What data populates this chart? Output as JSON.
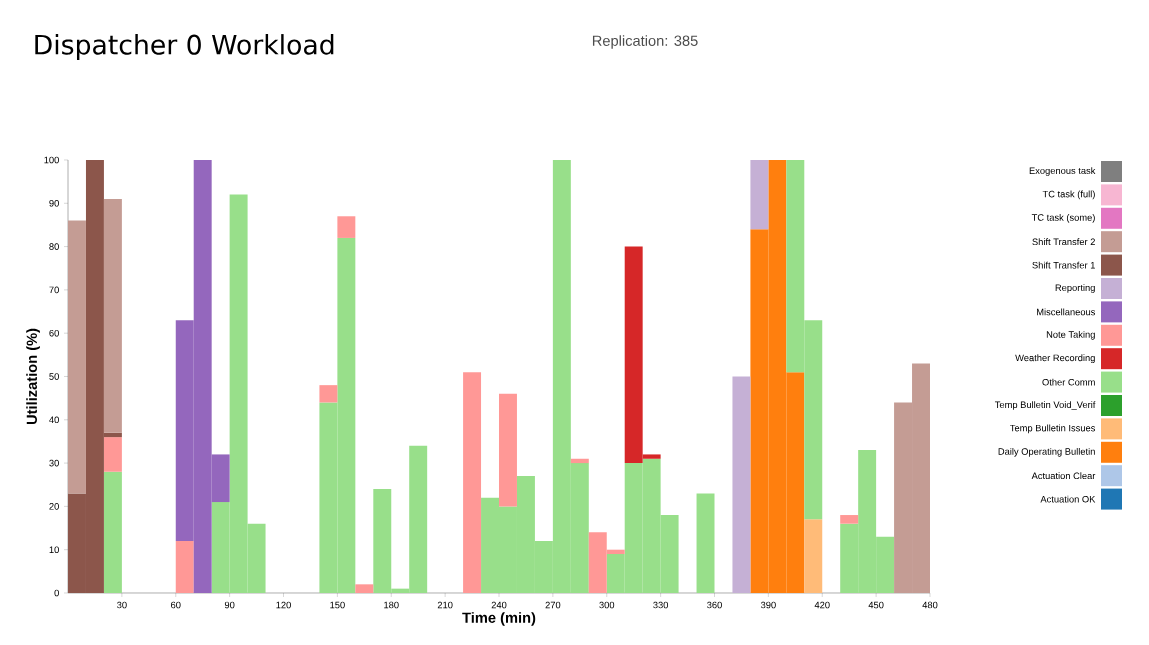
{
  "chart_data": {
    "type": "bar",
    "title": "Dispatcher 0 Workload",
    "annotations": [
      "Replication: 385"
    ],
    "xlabel": "Time (min)",
    "ylabel": "Utilization (%)",
    "x": [
      5,
      15,
      25,
      35,
      45,
      55,
      65,
      75,
      85,
      95,
      105,
      115,
      125,
      135,
      145,
      155,
      165,
      175,
      185,
      195,
      205,
      215,
      225,
      235,
      245,
      255,
      265,
      275,
      285,
      295,
      305,
      315,
      325,
      335,
      345,
      355,
      365,
      375,
      385,
      395,
      405,
      415,
      425,
      435,
      445,
      455,
      465,
      475
    ],
    "stacked": true,
    "legend": "right",
    "xlim": [
      0,
      480
    ],
    "ylim": [
      0,
      100
    ],
    "xticks": [
      30,
      60,
      90,
      120,
      150,
      180,
      210,
      240,
      270,
      300,
      330,
      360,
      390,
      420,
      450,
      480
    ],
    "yticks": [
      0,
      10,
      20,
      30,
      40,
      50,
      60,
      70,
      80,
      90,
      100
    ],
    "series": [
      {
        "name": "Actuation OK",
        "color": "#1f77b4",
        "values": [
          0,
          0,
          0,
          0,
          0,
          0,
          0,
          0,
          0,
          0,
          0,
          0,
          0,
          0,
          0,
          0,
          0,
          0,
          0,
          0,
          0,
          0,
          0,
          0,
          0,
          0,
          0,
          0,
          0,
          0,
          0,
          0,
          0,
          0,
          0,
          0,
          0,
          0,
          0,
          0,
          0,
          0,
          0,
          0,
          0,
          0,
          0,
          0
        ]
      },
      {
        "name": "Actuation Clear",
        "color": "#aec7e8",
        "values": [
          0,
          0,
          0,
          0,
          0,
          0,
          0,
          0,
          0,
          0,
          0,
          0,
          0,
          0,
          0,
          0,
          0,
          0,
          0,
          0,
          0,
          0,
          0,
          0,
          0,
          0,
          0,
          0,
          0,
          0,
          0,
          0,
          0,
          0,
          0,
          0,
          0,
          0,
          0,
          0,
          0,
          0,
          0,
          0,
          0,
          0,
          0,
          0
        ]
      },
      {
        "name": "Daily Operating Bulletin",
        "color": "#ff7f0e",
        "values": [
          0,
          0,
          0,
          0,
          0,
          0,
          0,
          0,
          0,
          0,
          0,
          0,
          0,
          0,
          0,
          0,
          0,
          0,
          0,
          0,
          0,
          0,
          0,
          0,
          0,
          0,
          0,
          0,
          0,
          0,
          0,
          0,
          0,
          0,
          0,
          0,
          0,
          0,
          84,
          100,
          51,
          0,
          0,
          0,
          0,
          0,
          0,
          0
        ]
      },
      {
        "name": "Temp Bulletin Issues",
        "color": "#ffbb78",
        "values": [
          0,
          0,
          0,
          0,
          0,
          0,
          0,
          0,
          0,
          0,
          0,
          0,
          0,
          0,
          0,
          0,
          0,
          0,
          0,
          0,
          0,
          0,
          0,
          0,
          0,
          0,
          0,
          0,
          0,
          0,
          0,
          0,
          0,
          0,
          0,
          0,
          0,
          0,
          0,
          0,
          0,
          17,
          0,
          0,
          0,
          0,
          0,
          0
        ]
      },
      {
        "name": "Temp Bulletin Void_Verif",
        "color": "#2ca02c",
        "values": [
          0,
          0,
          0,
          0,
          0,
          0,
          0,
          0,
          0,
          0,
          0,
          0,
          0,
          0,
          0,
          0,
          0,
          0,
          0,
          0,
          0,
          0,
          0,
          0,
          0,
          0,
          0,
          0,
          0,
          0,
          0,
          0,
          0,
          0,
          0,
          0,
          0,
          0,
          0,
          0,
          0,
          0,
          0,
          0,
          0,
          0,
          0,
          0
        ]
      },
      {
        "name": "Other Comm",
        "color": "#98df8a",
        "values": [
          0,
          0,
          28,
          0,
          0,
          0,
          0,
          0,
          21,
          92,
          16,
          0,
          0,
          0,
          44,
          82,
          0,
          24,
          1,
          34,
          0,
          0,
          0,
          22,
          20,
          27,
          12,
          100,
          30,
          0,
          9,
          30,
          31,
          18,
          0,
          23,
          0,
          0,
          0,
          0,
          49,
          46,
          0,
          16,
          33,
          13,
          0,
          0
        ]
      },
      {
        "name": "Weather Recording",
        "color": "#d62728",
        "values": [
          0,
          0,
          0,
          0,
          0,
          0,
          0,
          0,
          0,
          0,
          0,
          0,
          0,
          0,
          0,
          0,
          0,
          0,
          0,
          0,
          0,
          0,
          0,
          0,
          0,
          0,
          0,
          0,
          0,
          0,
          0,
          50,
          1,
          0,
          0,
          0,
          0,
          0,
          0,
          0,
          0,
          0,
          0,
          0,
          0,
          0,
          0,
          0
        ]
      },
      {
        "name": "Note Taking",
        "color": "#ff9896",
        "values": [
          0,
          0,
          8,
          0,
          0,
          0,
          12,
          0,
          0,
          0,
          0,
          0,
          0,
          0,
          4,
          5,
          2,
          0,
          0,
          0,
          0,
          0,
          51,
          0,
          26,
          0,
          0,
          0,
          1,
          14,
          1,
          0,
          0,
          0,
          0,
          0,
          0,
          0,
          0,
          0,
          0,
          0,
          0,
          2,
          0,
          0,
          0,
          0
        ]
      },
      {
        "name": "Miscellaneous",
        "color": "#9467bd",
        "values": [
          0,
          0,
          0,
          0,
          0,
          0,
          51,
          100,
          11,
          0,
          0,
          0,
          0,
          0,
          0,
          0,
          0,
          0,
          0,
          0,
          0,
          0,
          0,
          0,
          0,
          0,
          0,
          0,
          0,
          0,
          0,
          0,
          0,
          0,
          0,
          0,
          0,
          0,
          0,
          0,
          0,
          0,
          0,
          0,
          0,
          0,
          0,
          0
        ]
      },
      {
        "name": "Reporting",
        "color": "#c5b0d5",
        "values": [
          0,
          0,
          0,
          0,
          0,
          0,
          0,
          0,
          0,
          0,
          0,
          0,
          0,
          0,
          0,
          0,
          0,
          0,
          0,
          0,
          0,
          0,
          0,
          0,
          0,
          0,
          0,
          0,
          0,
          0,
          0,
          0,
          0,
          0,
          0,
          0,
          0,
          50,
          16,
          0,
          0,
          0,
          0,
          0,
          0,
          0,
          0,
          0
        ]
      },
      {
        "name": "Shift Transfer 1",
        "color": "#8c564b",
        "values": [
          23,
          100,
          1,
          0,
          0,
          0,
          0,
          0,
          0,
          0,
          0,
          0,
          0,
          0,
          0,
          0,
          0,
          0,
          0,
          0,
          0,
          0,
          0,
          0,
          0,
          0,
          0,
          0,
          0,
          0,
          0,
          0,
          0,
          0,
          0,
          0,
          0,
          0,
          0,
          0,
          0,
          0,
          0,
          0,
          0,
          0,
          0,
          0
        ]
      },
      {
        "name": "Shift Transfer 2",
        "color": "#c49c94",
        "values": [
          63,
          0,
          54,
          0,
          0,
          0,
          0,
          0,
          0,
          0,
          0,
          0,
          0,
          0,
          0,
          0,
          0,
          0,
          0,
          0,
          0,
          0,
          0,
          0,
          0,
          0,
          0,
          0,
          0,
          0,
          0,
          0,
          0,
          0,
          0,
          0,
          0,
          0,
          0,
          0,
          0,
          0,
          0,
          0,
          0,
          0,
          44,
          53
        ]
      },
      {
        "name": "TC task (some)",
        "color": "#e377c2",
        "values": [
          0,
          0,
          0,
          0,
          0,
          0,
          0,
          0,
          0,
          0,
          0,
          0,
          0,
          0,
          0,
          0,
          0,
          0,
          0,
          0,
          0,
          0,
          0,
          0,
          0,
          0,
          0,
          0,
          0,
          0,
          0,
          0,
          0,
          0,
          0,
          0,
          0,
          0,
          0,
          0,
          0,
          0,
          0,
          0,
          0,
          0,
          0,
          0
        ]
      },
      {
        "name": "TC task (full)",
        "color": "#f7b6d2",
        "values": [
          0,
          0,
          0,
          0,
          0,
          0,
          0,
          0,
          0,
          0,
          0,
          0,
          0,
          0,
          0,
          0,
          0,
          0,
          0,
          0,
          0,
          0,
          0,
          0,
          0,
          0,
          0,
          0,
          0,
          0,
          0,
          0,
          0,
          0,
          0,
          0,
          0,
          0,
          0,
          0,
          0,
          0,
          0,
          0,
          0,
          0,
          0,
          0
        ]
      },
      {
        "name": "Exogenous task",
        "color": "#7f7f7f",
        "values": [
          0,
          0,
          0,
          0,
          0,
          0,
          0,
          0,
          0,
          0,
          0,
          0,
          0,
          0,
          0,
          0,
          0,
          0,
          0,
          0,
          0,
          0,
          0,
          0,
          0,
          0,
          0,
          0,
          0,
          0,
          0,
          0,
          0,
          0,
          0,
          0,
          0,
          0,
          0,
          0,
          0,
          0,
          0,
          0,
          0,
          0,
          0,
          0
        ]
      }
    ]
  }
}
